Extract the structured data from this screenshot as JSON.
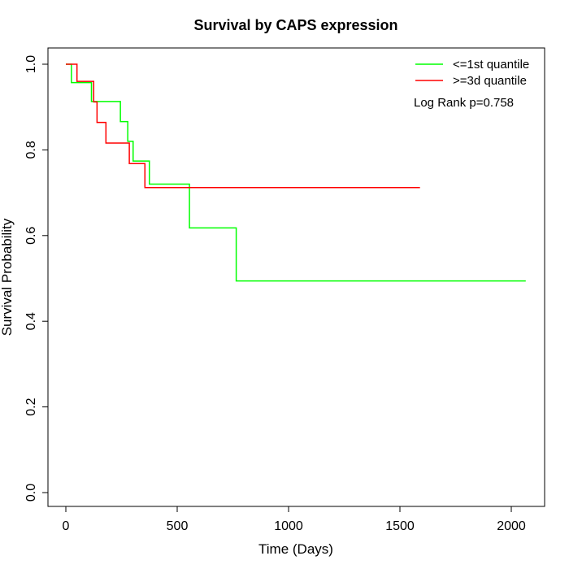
{
  "chart_data": {
    "type": "line",
    "title": "Survival by CAPS expression",
    "xlabel": "Time (Days)",
    "ylabel": "Survival Probability",
    "xlim": [
      0,
      2070
    ],
    "ylim": [
      0,
      1
    ],
    "x_ticks": [
      0,
      500,
      1000,
      1500,
      2000
    ],
    "y_ticks": [
      0.0,
      0.2,
      0.4,
      0.6,
      0.8,
      1.0
    ],
    "x_tick_labels": [
      "0",
      "500",
      "1000",
      "1500",
      "2000"
    ],
    "y_tick_labels": [
      "0.0",
      "0.2",
      "0.4",
      "0.6",
      "0.8",
      "1.0"
    ],
    "legend_position": "top-right",
    "annotation": "Log Rank p=0.758",
    "series": [
      {
        "name": "<=1st quantile",
        "color": "#00ff00",
        "step_x": [
          0,
          25,
          115,
          245,
          278,
          302,
          375,
          555,
          765,
          2065
        ],
        "step_y": [
          1.0,
          0.957,
          0.913,
          0.866,
          0.82,
          0.774,
          0.72,
          0.618,
          0.494,
          0.494
        ]
      },
      {
        "name": ">=3d quantile",
        "color": "#ff0000",
        "step_x": [
          0,
          50,
          125,
          140,
          180,
          285,
          355,
          1590
        ],
        "step_y": [
          1.0,
          0.96,
          0.912,
          0.864,
          0.816,
          0.768,
          0.712,
          0.712
        ]
      }
    ]
  }
}
